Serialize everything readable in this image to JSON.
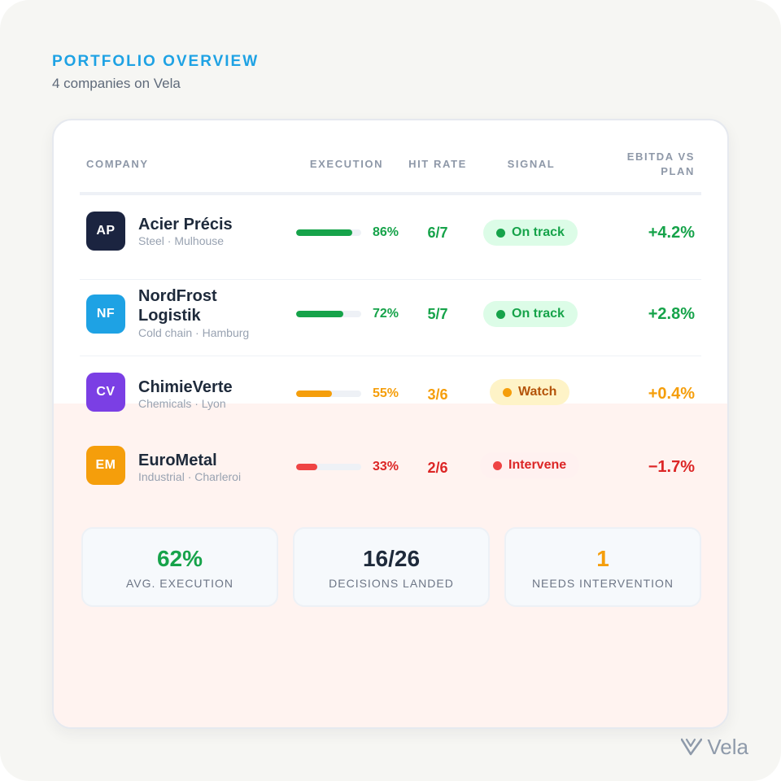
{
  "header": {
    "eyebrow": "PORTFOLIO OVERVIEW",
    "subtitle": "4 companies on Vela"
  },
  "table": {
    "columns": {
      "company": "COMPANY",
      "execution": "EXECUTION",
      "hit_rate": "HIT RATE",
      "signal": "SIGNAL",
      "ebitda": "EBITDA VS PLAN"
    },
    "rows": [
      {
        "initials": "AP",
        "logo_color": "#1b2440",
        "name": "Acier Précis",
        "meta": "Steel · Mulhouse",
        "execution_pct": "86%",
        "execution_value": 0.86,
        "hit_rate": "6/7",
        "signal": "On track",
        "ebitda": "+4.2%",
        "tone": "green"
      },
      {
        "initials": "NF",
        "logo_color": "#1ea2e4",
        "name": "NordFrost Logistik",
        "meta": "Cold chain · Hamburg",
        "execution_pct": "72%",
        "execution_value": 0.72,
        "hit_rate": "5/7",
        "signal": "On track",
        "ebitda": "+2.8%",
        "tone": "green"
      },
      {
        "initials": "CV",
        "logo_color": "#7b3fe4",
        "name": "ChimieVerte",
        "meta": "Chemicals · Lyon",
        "execution_pct": "55%",
        "execution_value": 0.55,
        "hit_rate": "3/6",
        "signal": "Watch",
        "ebitda": "+0.4%",
        "tone": "amber"
      },
      {
        "initials": "EM",
        "logo_color": "#f59e0b",
        "name": "EuroMetal",
        "meta": "Industrial · Charleroi",
        "execution_pct": "33%",
        "execution_value": 0.33,
        "hit_rate": "2/6",
        "signal": "Intervene",
        "ebitda": "−1.7%",
        "tone": "red"
      }
    ]
  },
  "stats": [
    {
      "value": "62%",
      "label": "AVG. EXECUTION",
      "color": "#16a34a"
    },
    {
      "value": "16/26",
      "label": "DECISIONS LANDED",
      "color": "#1e2a3b"
    },
    {
      "value": "1",
      "label": "NEEDS INTERVENTION",
      "color": "#f59e0b"
    }
  ],
  "brand": {
    "name": "Vela",
    "icon": "vela-logo-icon"
  },
  "colors": {
    "accent": "#1ea2e4",
    "green": "#16a34a",
    "green_bg": "#dcfce7",
    "amber": "#f59e0b",
    "amber_text": "#b45309",
    "amber_bg": "#fef3c7",
    "red": "#ef4444",
    "red_text": "#dc2626",
    "red_bg": "#fff1f0"
  }
}
